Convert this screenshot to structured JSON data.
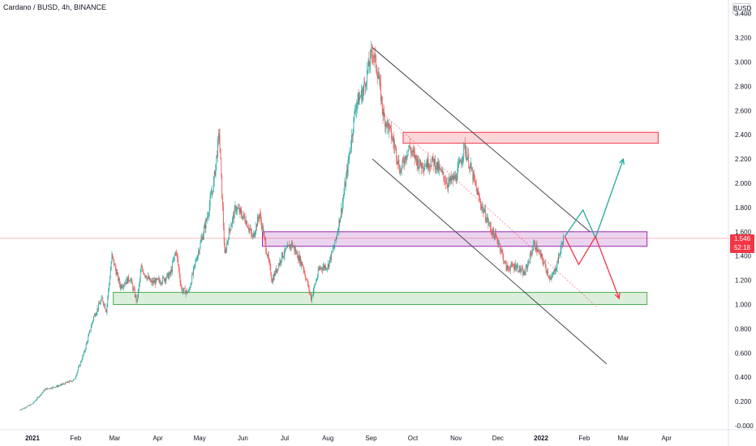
{
  "header": {
    "symbol": "Cardano / BUSD, 4h, BINANCE",
    "currency": "BUSD"
  },
  "price_tag": {
    "price": "1.546",
    "countdown": "52:18"
  },
  "colors": {
    "candle_up": "#26a69a",
    "candle_down": "#ef5350",
    "resistance_zone": "#f23645",
    "mid_zone": "#9c27b0",
    "support_zone": "#4caf50",
    "bull_path": "#26a69a",
    "bear_path": "#f23645",
    "channel": "#434651"
  },
  "chart_data": {
    "type": "candlestick",
    "title": "Cardano / BUSD, 4h, BINANCE",
    "y_unit": "BUSD",
    "ylim": [
      -0.02,
      3.42
    ],
    "y_ticks": [
      "3.400",
      "3.200",
      "3.000",
      "2.800",
      "2.600",
      "2.400",
      "2.200",
      "2.000",
      "1.800",
      "1.600",
      "1.400",
      "1.200",
      "1.000",
      "0.800",
      "0.600",
      "0.400",
      "0.200",
      "-0.000"
    ],
    "y_tick_values": [
      3.4,
      3.2,
      3.0,
      2.8,
      2.6,
      2.4,
      2.2,
      2.0,
      1.8,
      1.6,
      1.4,
      1.2,
      1.0,
      0.8,
      0.6,
      0.4,
      0.2,
      0.0
    ],
    "x_ticks": [
      "2021",
      "Feb",
      "Mar",
      "Apr",
      "May",
      "Jun",
      "Jul",
      "Aug",
      "Sep",
      "Oct",
      "Nov",
      "Dec",
      "2022",
      "Feb",
      "Mar",
      "Apr"
    ],
    "x_tick_dates": [
      "2021-01-01",
      "2021-02-01",
      "2021-03-01",
      "2021-04-01",
      "2021-05-01",
      "2021-06-01",
      "2021-07-01",
      "2021-08-01",
      "2021-09-01",
      "2021-10-01",
      "2021-11-01",
      "2021-12-01",
      "2022-01-01",
      "2022-02-01",
      "2022-03-01",
      "2022-04-01"
    ],
    "price_path": [
      [
        "2020-12-23",
        0.13
      ],
      [
        "2021-01-01",
        0.18
      ],
      [
        "2021-01-10",
        0.3
      ],
      [
        "2021-01-20",
        0.33
      ],
      [
        "2021-01-31",
        0.38
      ],
      [
        "2021-02-07",
        0.6
      ],
      [
        "2021-02-14",
        0.9
      ],
      [
        "2021-02-20",
        1.05
      ],
      [
        "2021-02-23",
        0.95
      ],
      [
        "2021-02-27",
        1.4
      ],
      [
        "2021-03-05",
        1.15
      ],
      [
        "2021-03-12",
        1.22
      ],
      [
        "2021-03-17",
        1.02
      ],
      [
        "2021-03-20",
        1.3
      ],
      [
        "2021-03-27",
        1.18
      ],
      [
        "2021-04-04",
        1.2
      ],
      [
        "2021-04-10",
        1.25
      ],
      [
        "2021-04-14",
        1.45
      ],
      [
        "2021-04-18",
        1.12
      ],
      [
        "2021-04-23",
        1.1
      ],
      [
        "2021-04-28",
        1.35
      ],
      [
        "2021-05-06",
        1.7
      ],
      [
        "2021-05-11",
        2.0
      ],
      [
        "2021-05-15",
        2.42
      ],
      [
        "2021-05-19",
        1.4
      ],
      [
        "2021-05-22",
        1.6
      ],
      [
        "2021-05-27",
        1.8
      ],
      [
        "2021-06-03",
        1.7
      ],
      [
        "2021-06-08",
        1.55
      ],
      [
        "2021-06-13",
        1.75
      ],
      [
        "2021-06-22",
        1.2
      ],
      [
        "2021-06-29",
        1.4
      ],
      [
        "2021-07-06",
        1.5
      ],
      [
        "2021-07-14",
        1.32
      ],
      [
        "2021-07-20",
        1.05
      ],
      [
        "2021-07-26",
        1.3
      ],
      [
        "2021-08-01",
        1.32
      ],
      [
        "2021-08-06",
        1.5
      ],
      [
        "2021-08-11",
        1.8
      ],
      [
        "2021-08-16",
        2.2
      ],
      [
        "2021-08-21",
        2.65
      ],
      [
        "2021-08-26",
        2.75
      ],
      [
        "2021-09-02",
        3.1
      ],
      [
        "2021-09-06",
        2.9
      ],
      [
        "2021-09-10",
        2.55
      ],
      [
        "2021-09-14",
        2.45
      ],
      [
        "2021-09-18",
        2.3
      ],
      [
        "2021-09-22",
        2.1
      ],
      [
        "2021-09-28",
        2.3
      ],
      [
        "2021-10-06",
        2.15
      ],
      [
        "2021-10-16",
        2.18
      ],
      [
        "2021-10-26",
        2.0
      ],
      [
        "2021-11-01",
        2.05
      ],
      [
        "2021-11-07",
        2.3
      ],
      [
        "2021-11-12",
        2.1
      ],
      [
        "2021-11-18",
        1.85
      ],
      [
        "2021-11-26",
        1.62
      ],
      [
        "2021-12-02",
        1.5
      ],
      [
        "2021-12-07",
        1.3
      ],
      [
        "2021-12-14",
        1.32
      ],
      [
        "2021-12-20",
        1.25
      ],
      [
        "2021-12-27",
        1.5
      ],
      [
        "2022-01-02",
        1.37
      ],
      [
        "2022-01-08",
        1.2
      ],
      [
        "2022-01-12",
        1.32
      ],
      [
        "2022-01-17",
        1.546
      ]
    ],
    "zones": [
      {
        "from": "2021-09-24",
        "to": "2022-03-26",
        "low": 2.33,
        "high": 2.42
      },
      {
        "from": "2021-06-15",
        "to": "2022-03-18",
        "low": 1.48,
        "high": 1.6
      },
      {
        "from": "2021-02-28",
        "to": "2022-03-18",
        "low": 1.0,
        "high": 1.1
      }
    ],
    "channel_lines": [
      {
        "from": [
          "2021-09-02",
          3.12
        ],
        "to": [
          "2022-02-05",
          1.6
        ]
      },
      {
        "from": [
          "2021-09-02",
          2.2
        ],
        "to": [
          "2022-02-17",
          0.51
        ]
      },
      {
        "from": [
          "2021-09-12",
          2.55
        ],
        "to": [
          "2022-02-10",
          0.98
        ]
      }
    ],
    "projections": [
      {
        "direction": "up",
        "points": [
          [
            "2022-01-18",
            1.56
          ],
          [
            "2022-01-31",
            1.78
          ],
          [
            "2022-02-09",
            1.55
          ],
          [
            "2022-03-01",
            2.2
          ]
        ]
      },
      {
        "direction": "down",
        "points": [
          [
            "2022-01-18",
            1.56
          ],
          [
            "2022-01-28",
            1.33
          ],
          [
            "2022-02-09",
            1.56
          ],
          [
            "2022-02-26",
            1.05
          ]
        ]
      }
    ],
    "current_price": 1.546
  }
}
